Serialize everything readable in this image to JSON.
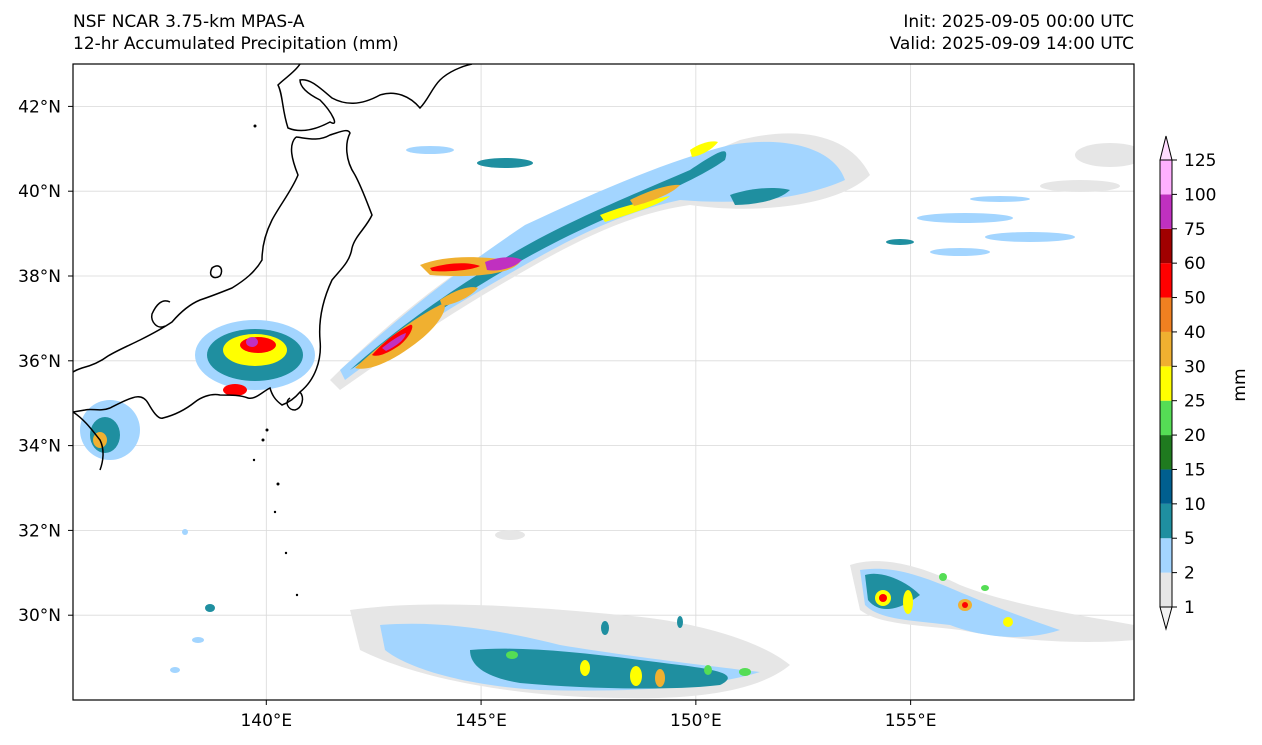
{
  "header": {
    "model": "NSF NCAR 3.75-km MPAS-A",
    "field": "12-hr Accumulated Precipitation (mm)",
    "init": "Init: 2025-09-05 00:00 UTC",
    "valid": "Valid: 2025-09-09 14:00 UTC"
  },
  "map": {
    "projection": "PlateCarree",
    "lon_range": [
      135.5,
      160.2
    ],
    "lat_range": [
      28.0,
      43.0
    ],
    "gridlines": true,
    "coastlines": true,
    "lon_ticks": [
      {
        "value": 140,
        "label": "140°E"
      },
      {
        "value": 145,
        "label": "145°E"
      },
      {
        "value": 150,
        "label": "150°E"
      },
      {
        "value": 155,
        "label": "155°E"
      }
    ],
    "lat_ticks": [
      {
        "value": 42,
        "label": "42°N"
      },
      {
        "value": 40,
        "label": "40°N"
      },
      {
        "value": 38,
        "label": "38°N"
      },
      {
        "value": 36,
        "label": "36°N"
      },
      {
        "value": 34,
        "label": "34°N"
      },
      {
        "value": 32,
        "label": "32°N"
      },
      {
        "value": 30,
        "label": "30°N"
      }
    ]
  },
  "colorbar": {
    "label": "mm",
    "levels": [
      1,
      2,
      5,
      10,
      15,
      20,
      25,
      30,
      40,
      50,
      60,
      75,
      100,
      125
    ],
    "colors": [
      "#e6e6e6",
      "#a3d5ff",
      "#1f8fa0",
      "#005f8f",
      "#1f7a1f",
      "#55dd55",
      "#ffff00",
      "#f0b030",
      "#f08020",
      "#ff0000",
      "#a00000",
      "#c030c0",
      "#ffb0ff"
    ],
    "extend": "both"
  },
  "colors": {
    "land": "#ffffff",
    "ocean": "#ffffff",
    "coast": "#000000",
    "grid": "#d9d9d9"
  }
}
